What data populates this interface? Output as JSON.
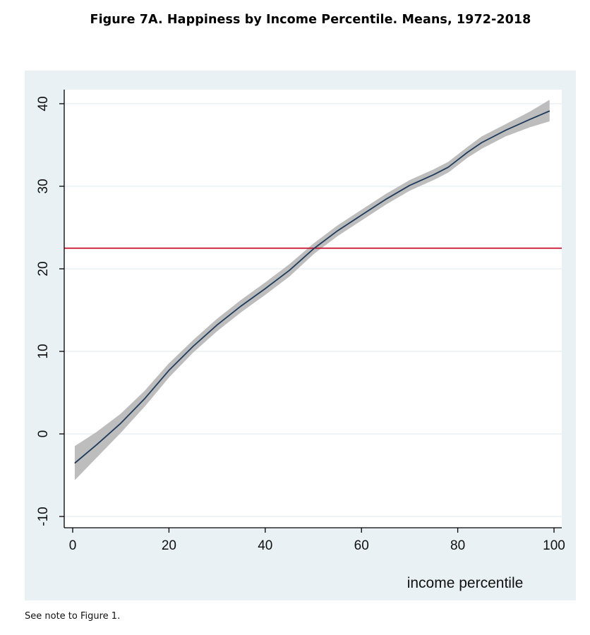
{
  "page": {
    "title": "Figure 7A. Happiness by Income Percentile. Means, 1972-2018",
    "footnote": "See note to Figure 1."
  },
  "chart_data": {
    "type": "line",
    "title": "",
    "xlabel": "income percentile",
    "ylabel": "",
    "xlim": [
      0,
      100
    ],
    "ylim": [
      -10,
      40
    ],
    "x_ticks": [
      0,
      20,
      40,
      60,
      80,
      100
    ],
    "y_ticks": [
      -10,
      0,
      10,
      20,
      30,
      40
    ],
    "grid": "horizontal",
    "reference_line": {
      "y": 22.5,
      "color": "#c8102e"
    },
    "series": [
      {
        "color": "#1f3a5a",
        "band_color": "#bdbdbd",
        "x": [
          0.5,
          5,
          10,
          15,
          20,
          25,
          30,
          35,
          40,
          45,
          50,
          55,
          60,
          65,
          70,
          75,
          78,
          80,
          82,
          85,
          90,
          95,
          99
        ],
        "y": [
          -3.5,
          -1.3,
          1.3,
          4.3,
          7.7,
          10.6,
          13.2,
          15.5,
          17.6,
          19.8,
          22.4,
          24.6,
          26.5,
          28.4,
          30.1,
          31.4,
          32.3,
          33.2,
          34.1,
          35.3,
          36.8,
          38.1,
          39.1
        ],
        "lower": [
          -5.5,
          -2.8,
          0.2,
          3.4,
          6.9,
          9.9,
          12.5,
          14.8,
          16.9,
          19.1,
          21.8,
          24.0,
          25.9,
          27.8,
          29.5,
          30.8,
          31.7,
          32.6,
          33.5,
          34.6,
          36.1,
          37.2,
          37.9
        ],
        "upper": [
          -1.5,
          0.2,
          2.4,
          5.2,
          8.5,
          11.3,
          13.9,
          16.2,
          18.3,
          20.5,
          23.0,
          25.2,
          27.1,
          29.0,
          30.7,
          32.0,
          32.9,
          33.8,
          34.7,
          36.0,
          37.5,
          39.0,
          40.4
        ]
      }
    ]
  }
}
